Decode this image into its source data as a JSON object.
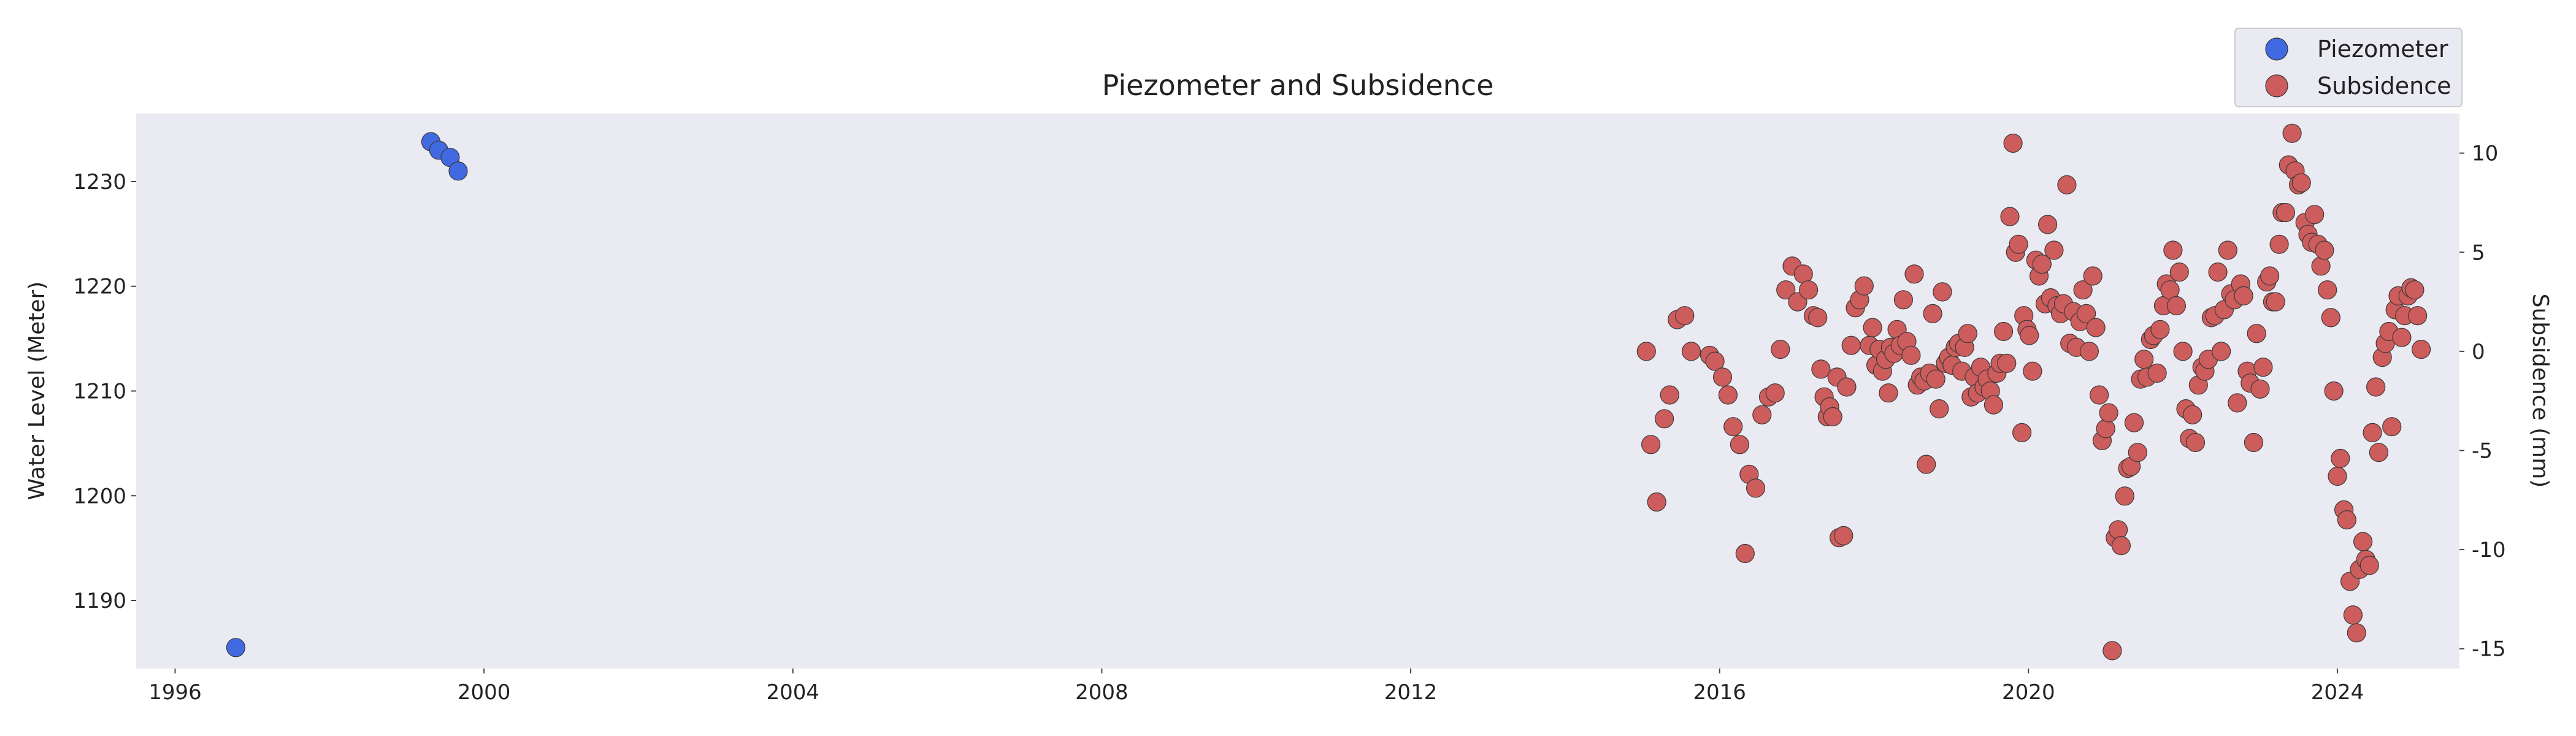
{
  "chart_data": {
    "type": "scatter",
    "title": "Piezometer and Subsidence",
    "xlabel": "",
    "ylabel": "Water Level (Meter)",
    "y2label": "Subsidence (mm)",
    "xlim": [
      "1995-07-01",
      "2025-08-01"
    ],
    "ylim": [
      1183.5,
      1236.5
    ],
    "y2lim": [
      -16.0,
      12.0
    ],
    "x_ticks": [
      "1996",
      "2000",
      "2004",
      "2008",
      "2012",
      "2016",
      "2020",
      "2024"
    ],
    "y_ticks": [
      "1190",
      "1200",
      "1210",
      "1220",
      "1230"
    ],
    "y2_ticks": [
      "-15",
      "-10",
      "-5",
      "0",
      "5",
      "10"
    ],
    "grid": false,
    "legend_position": "top-right",
    "background": "#eaeaf2",
    "series": [
      {
        "name": "Piezometer",
        "axis": "left",
        "color": "#4169e1",
        "points": [
          [
            "1996-10-15",
            1185.5
          ],
          [
            "1999-04-25",
            1233.8
          ],
          [
            "1999-06-01",
            1233.0
          ],
          [
            "1999-07-25",
            1232.3
          ],
          [
            "1999-09-01",
            1231.0
          ]
        ]
      },
      {
        "name": "Subsidence",
        "axis": "right",
        "color": "#cd5c5c",
        "points": [
          [
            "2015-01-20",
            0.0
          ],
          [
            "2015-02-10",
            -4.7
          ],
          [
            "2015-03-10",
            -7.6
          ],
          [
            "2015-04-15",
            -3.4
          ],
          [
            "2015-05-10",
            -2.2
          ],
          [
            "2015-06-15",
            1.6
          ],
          [
            "2015-07-20",
            1.8
          ],
          [
            "2015-08-20",
            0.0
          ],
          [
            "2015-11-15",
            -0.2
          ],
          [
            "2015-12-10",
            -0.5
          ],
          [
            "2016-01-15",
            -1.3
          ],
          [
            "2016-02-10",
            -2.2
          ],
          [
            "2016-03-05",
            -3.8
          ],
          [
            "2016-04-05",
            -4.7
          ],
          [
            "2016-05-01",
            -10.2
          ],
          [
            "2016-05-20",
            -6.2
          ],
          [
            "2016-06-20",
            -6.9
          ],
          [
            "2016-07-20",
            -3.2
          ],
          [
            "2016-08-20",
            -2.3
          ],
          [
            "2016-09-20",
            -2.1
          ],
          [
            "2016-10-15",
            0.1
          ],
          [
            "2016-11-10",
            3.1
          ],
          [
            "2016-12-10",
            4.3
          ],
          [
            "2017-01-05",
            2.5
          ],
          [
            "2017-02-01",
            3.9
          ],
          [
            "2017-02-25",
            3.1
          ],
          [
            "2017-03-20",
            1.8
          ],
          [
            "2017-04-10",
            1.7
          ],
          [
            "2017-04-25",
            -0.9
          ],
          [
            "2017-05-10",
            -2.3
          ],
          [
            "2017-05-25",
            -3.3
          ],
          [
            "2017-06-05",
            -2.8
          ],
          [
            "2017-06-20",
            -3.3
          ],
          [
            "2017-07-10",
            -1.3
          ],
          [
            "2017-07-20",
            -9.4
          ],
          [
            "2017-08-10",
            -9.3
          ],
          [
            "2017-08-25",
            -1.8
          ],
          [
            "2017-09-15",
            0.3
          ],
          [
            "2017-10-05",
            2.2
          ],
          [
            "2017-10-25",
            2.6
          ],
          [
            "2017-11-15",
            3.3
          ],
          [
            "2017-12-10",
            0.3
          ],
          [
            "2017-12-25",
            1.2
          ],
          [
            "2018-01-10",
            -0.7
          ],
          [
            "2018-01-25",
            0.1
          ],
          [
            "2018-02-10",
            -1.0
          ],
          [
            "2018-02-25",
            -0.4
          ],
          [
            "2018-03-10",
            -2.1
          ],
          [
            "2018-03-20",
            0.2
          ],
          [
            "2018-04-05",
            -0.1
          ],
          [
            "2018-04-20",
            1.1
          ],
          [
            "2018-05-05",
            0.3
          ],
          [
            "2018-05-20",
            2.6
          ],
          [
            "2018-06-05",
            0.5
          ],
          [
            "2018-06-25",
            -0.2
          ],
          [
            "2018-07-10",
            3.9
          ],
          [
            "2018-07-25",
            -1.7
          ],
          [
            "2018-08-10",
            -1.3
          ],
          [
            "2018-08-25",
            -1.5
          ],
          [
            "2018-09-05",
            -5.7
          ],
          [
            "2018-09-20",
            -1.1
          ],
          [
            "2018-10-05",
            1.9
          ],
          [
            "2018-10-20",
            -1.4
          ],
          [
            "2018-11-05",
            -2.9
          ],
          [
            "2018-11-20",
            3.0
          ],
          [
            "2018-12-05",
            -0.6
          ],
          [
            "2018-12-20",
            -0.3
          ],
          [
            "2019-01-05",
            -0.7
          ],
          [
            "2019-01-20",
            0.2
          ],
          [
            "2019-02-05",
            0.4
          ],
          [
            "2019-02-20",
            -1.0
          ],
          [
            "2019-03-05",
            0.2
          ],
          [
            "2019-03-20",
            0.9
          ],
          [
            "2019-04-05",
            -2.3
          ],
          [
            "2019-04-20",
            -1.3
          ],
          [
            "2019-05-05",
            -2.1
          ],
          [
            "2019-05-20",
            -0.8
          ],
          [
            "2019-06-05",
            -1.8
          ],
          [
            "2019-06-20",
            -1.4
          ],
          [
            "2019-07-05",
            -2.0
          ],
          [
            "2019-07-20",
            -2.7
          ],
          [
            "2019-08-05",
            -1.1
          ],
          [
            "2019-08-20",
            -0.6
          ],
          [
            "2019-09-05",
            1.0
          ],
          [
            "2019-09-20",
            -0.6
          ],
          [
            "2019-10-05",
            6.8
          ],
          [
            "2019-10-20",
            10.5
          ],
          [
            "2019-11-01",
            5.0
          ],
          [
            "2019-11-15",
            5.4
          ],
          [
            "2019-12-01",
            -4.1
          ],
          [
            "2019-12-10",
            1.8
          ],
          [
            "2019-12-25",
            1.1
          ],
          [
            "2020-01-05",
            0.8
          ],
          [
            "2020-01-20",
            -1.0
          ],
          [
            "2020-02-05",
            4.6
          ],
          [
            "2020-02-20",
            3.8
          ],
          [
            "2020-03-05",
            4.4
          ],
          [
            "2020-03-20",
            2.4
          ],
          [
            "2020-04-01",
            6.4
          ],
          [
            "2020-04-15",
            2.7
          ],
          [
            "2020-05-01",
            5.1
          ],
          [
            "2020-05-15",
            2.3
          ],
          [
            "2020-06-01",
            1.9
          ],
          [
            "2020-06-15",
            2.4
          ],
          [
            "2020-07-01",
            8.4
          ],
          [
            "2020-07-15",
            0.4
          ],
          [
            "2020-08-01",
            2.0
          ],
          [
            "2020-08-15",
            0.2
          ],
          [
            "2020-09-01",
            1.5
          ],
          [
            "2020-09-15",
            3.1
          ],
          [
            "2020-10-01",
            1.9
          ],
          [
            "2020-10-15",
            0.0
          ],
          [
            "2020-11-01",
            3.8
          ],
          [
            "2020-11-15",
            1.2
          ],
          [
            "2020-12-01",
            -2.2
          ],
          [
            "2020-12-15",
            -4.5
          ],
          [
            "2021-01-01",
            -3.9
          ],
          [
            "2021-01-15",
            -3.1
          ],
          [
            "2021-02-01",
            -15.1
          ],
          [
            "2021-02-15",
            -9.4
          ],
          [
            "2021-03-01",
            -9.0
          ],
          [
            "2021-03-15",
            -9.8
          ],
          [
            "2021-04-01",
            -7.3
          ],
          [
            "2021-04-15",
            -5.9
          ],
          [
            "2021-05-01",
            -5.8
          ],
          [
            "2021-05-15",
            -3.6
          ],
          [
            "2021-06-01",
            -5.1
          ],
          [
            "2021-06-15",
            -1.4
          ],
          [
            "2021-07-01",
            -0.4
          ],
          [
            "2021-07-15",
            -1.3
          ],
          [
            "2021-08-01",
            0.6
          ],
          [
            "2021-08-15",
            0.8
          ],
          [
            "2021-09-01",
            -1.1
          ],
          [
            "2021-09-15",
            1.1
          ],
          [
            "2021-10-01",
            2.3
          ],
          [
            "2021-10-15",
            3.4
          ],
          [
            "2021-11-01",
            3.1
          ],
          [
            "2021-11-15",
            5.1
          ],
          [
            "2021-12-01",
            2.3
          ],
          [
            "2021-12-15",
            4.0
          ],
          [
            "2022-01-01",
            0.0
          ],
          [
            "2022-01-15",
            -2.9
          ],
          [
            "2022-02-01",
            -4.4
          ],
          [
            "2022-02-15",
            -3.2
          ],
          [
            "2022-03-01",
            -4.6
          ],
          [
            "2022-03-15",
            -1.7
          ],
          [
            "2022-04-01",
            -0.8
          ],
          [
            "2022-04-15",
            -1.0
          ],
          [
            "2022-05-01",
            -0.4
          ],
          [
            "2022-05-15",
            1.7
          ],
          [
            "2022-06-01",
            1.8
          ],
          [
            "2022-06-15",
            4.0
          ],
          [
            "2022-07-01",
            0.0
          ],
          [
            "2022-07-15",
            2.1
          ],
          [
            "2022-08-01",
            5.1
          ],
          [
            "2022-08-15",
            2.9
          ],
          [
            "2022-09-01",
            2.6
          ],
          [
            "2022-09-15",
            -2.6
          ],
          [
            "2022-10-01",
            3.4
          ],
          [
            "2022-10-15",
            2.8
          ],
          [
            "2022-11-01",
            -1.0
          ],
          [
            "2022-11-15",
            -1.6
          ],
          [
            "2022-12-01",
            -4.6
          ],
          [
            "2022-12-15",
            0.9
          ],
          [
            "2023-01-01",
            -1.9
          ],
          [
            "2023-01-15",
            -0.8
          ],
          [
            "2023-02-01",
            3.5
          ],
          [
            "2023-02-15",
            3.8
          ],
          [
            "2023-03-01",
            2.5
          ],
          [
            "2023-03-15",
            2.5
          ],
          [
            "2023-04-01",
            5.4
          ],
          [
            "2023-04-15",
            7.0
          ],
          [
            "2023-05-01",
            7.0
          ],
          [
            "2023-05-15",
            9.4
          ],
          [
            "2023-06-01",
            11.0
          ],
          [
            "2023-06-15",
            9.1
          ],
          [
            "2023-07-01",
            8.4
          ],
          [
            "2023-07-15",
            8.5
          ],
          [
            "2023-08-01",
            6.5
          ],
          [
            "2023-08-15",
            5.9
          ],
          [
            "2023-09-01",
            5.5
          ],
          [
            "2023-09-15",
            6.9
          ],
          [
            "2023-10-01",
            5.4
          ],
          [
            "2023-10-15",
            4.3
          ],
          [
            "2023-11-01",
            5.1
          ],
          [
            "2023-11-15",
            3.1
          ],
          [
            "2023-12-01",
            1.7
          ],
          [
            "2023-12-15",
            -2.0
          ],
          [
            "2024-01-01",
            -6.3
          ],
          [
            "2024-01-15",
            -5.4
          ],
          [
            "2024-02-01",
            -8.0
          ],
          [
            "2024-02-15",
            -8.5
          ],
          [
            "2024-03-01",
            -11.6
          ],
          [
            "2024-03-15",
            -13.3
          ],
          [
            "2024-04-01",
            -14.2
          ],
          [
            "2024-04-15",
            -11.0
          ],
          [
            "2024-05-01",
            -9.6
          ],
          [
            "2024-05-15",
            -10.5
          ],
          [
            "2024-06-01",
            -10.8
          ],
          [
            "2024-06-15",
            -4.1
          ],
          [
            "2024-07-01",
            -1.8
          ],
          [
            "2024-07-15",
            -5.1
          ],
          [
            "2024-08-01",
            -0.3
          ],
          [
            "2024-08-15",
            0.4
          ],
          [
            "2024-09-01",
            1.0
          ],
          [
            "2024-09-15",
            -3.8
          ],
          [
            "2024-10-01",
            2.1
          ],
          [
            "2024-10-15",
            2.8
          ],
          [
            "2024-11-01",
            0.7
          ],
          [
            "2024-11-15",
            1.8
          ],
          [
            "2024-12-01",
            2.8
          ],
          [
            "2024-12-15",
            3.2
          ],
          [
            "2025-01-01",
            3.1
          ],
          [
            "2025-01-15",
            1.8
          ],
          [
            "2025-02-01",
            0.1
          ]
        ]
      }
    ]
  }
}
